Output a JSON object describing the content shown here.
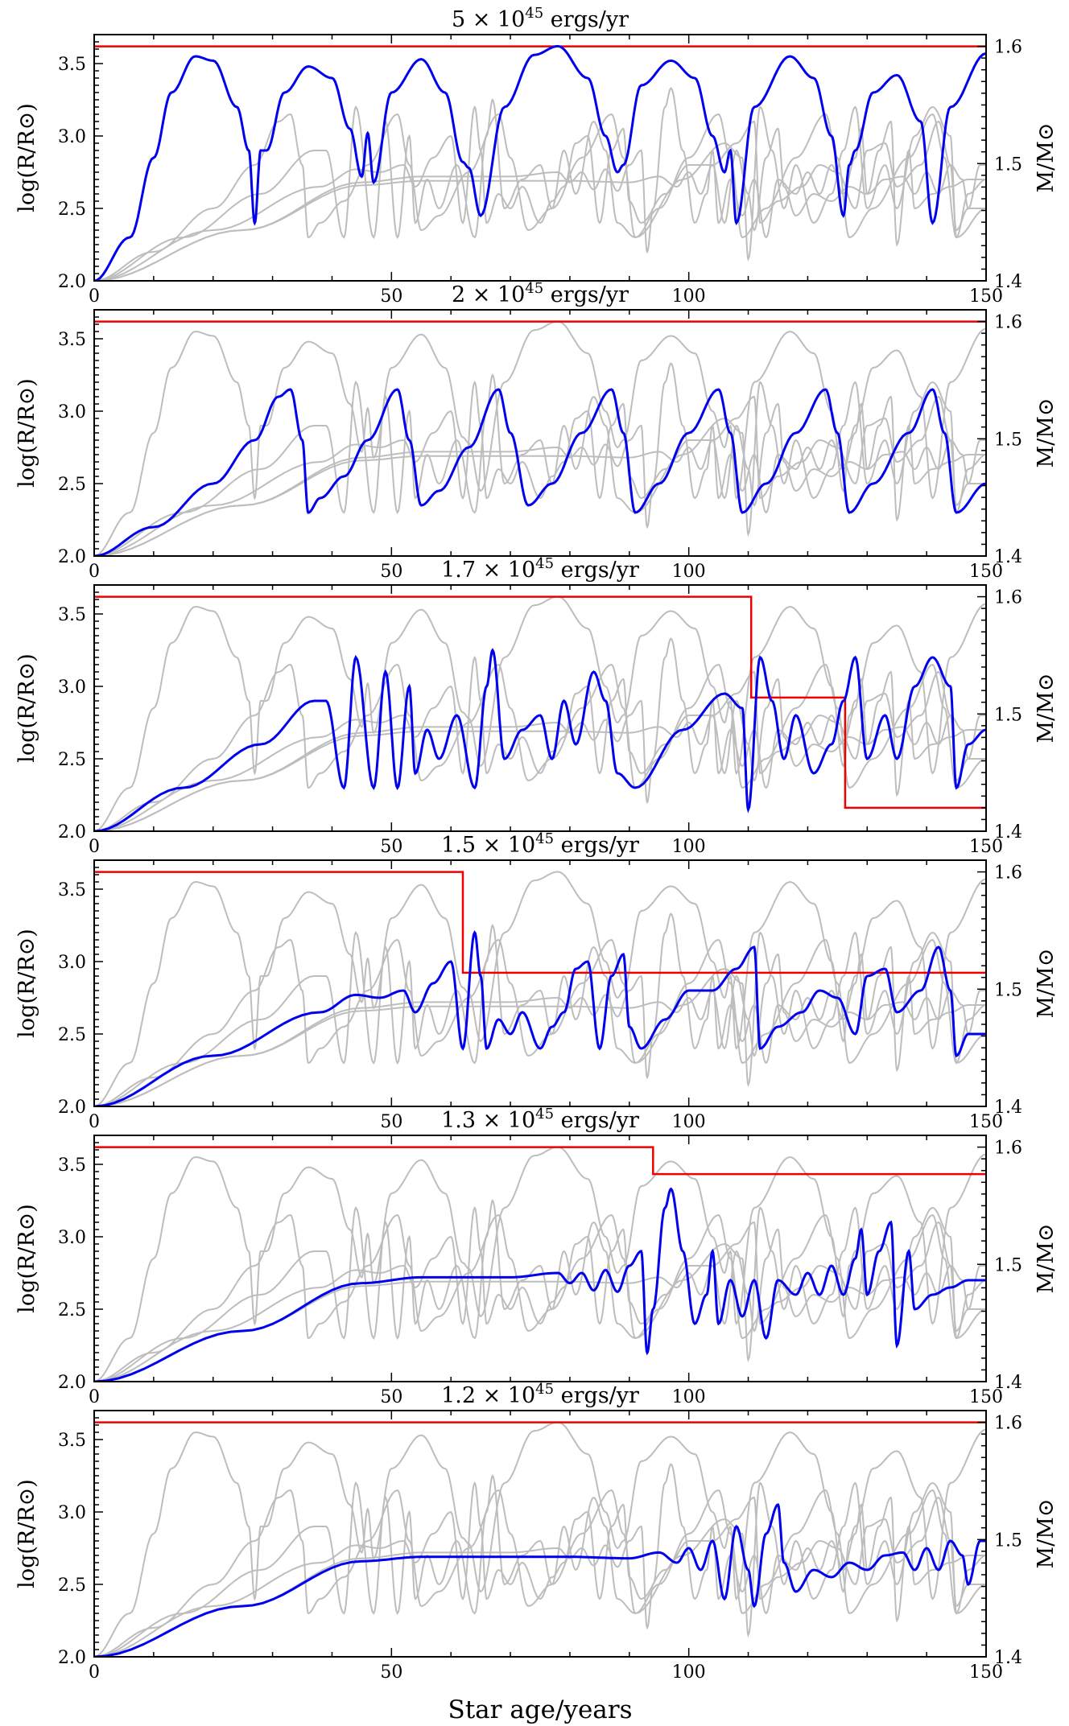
{
  "figure": {
    "xlabel": "Star age/years",
    "ylabel_left": "log(R/R⊙)",
    "ylabel_right": "M/M⊙"
  },
  "colors": {
    "highlight": "#0000ee",
    "mass": "#ee0000",
    "background_curves": "#bdbdbd"
  },
  "chart_data": [
    {
      "type": "line",
      "title": "5 × 10^45 ergs/yr",
      "title_parts": {
        "mantissa": "5",
        "times": "×",
        "base": "10",
        "exponent": "45",
        "unit": "ergs/yr"
      },
      "xlim": [
        0,
        150
      ],
      "ylim": [
        2.0,
        3.7
      ],
      "y2lim": [
        1.4,
        1.61
      ],
      "xticks": [
        0,
        50,
        100,
        150
      ],
      "yticks": [
        2.0,
        2.5,
        3.0,
        3.5
      ],
      "y2ticks": [
        1.4,
        1.5,
        1.6
      ],
      "radius_events": [
        [
          0,
          2.0
        ],
        [
          6,
          2.3
        ],
        [
          10,
          2.85
        ],
        [
          13,
          3.3
        ],
        [
          17,
          3.55
        ],
        [
          20,
          3.52
        ],
        [
          24,
          3.2
        ],
        [
          26,
          2.9
        ],
        [
          27,
          2.4
        ],
        [
          28,
          2.9
        ],
        [
          29,
          2.9
        ],
        [
          32,
          3.3
        ],
        [
          36,
          3.48
        ],
        [
          40,
          3.4
        ],
        [
          43,
          3.05
        ],
        [
          45,
          2.72
        ],
        [
          46,
          3.02
        ],
        [
          47,
          2.68
        ],
        [
          50,
          3.3
        ],
        [
          55,
          3.53
        ],
        [
          59,
          3.3
        ],
        [
          62,
          2.82
        ],
        [
          63,
          2.78
        ],
        [
          65,
          2.45
        ],
        [
          69,
          3.2
        ],
        [
          74,
          3.56
        ],
        [
          78,
          3.62
        ],
        [
          83,
          3.4
        ],
        [
          86,
          3.0
        ],
        [
          88,
          2.75
        ],
        [
          89,
          2.8
        ],
        [
          92,
          3.35
        ],
        [
          97,
          3.52
        ],
        [
          101,
          3.4
        ],
        [
          104,
          3.0
        ],
        [
          106,
          2.75
        ],
        [
          107,
          2.9
        ],
        [
          108,
          2.4
        ],
        [
          111,
          3.2
        ],
        [
          117,
          3.55
        ],
        [
          121,
          3.4
        ],
        [
          124,
          3.0
        ],
        [
          126,
          2.45
        ],
        [
          127,
          2.8
        ],
        [
          128,
          2.9
        ],
        [
          131,
          3.3
        ],
        [
          135,
          3.42
        ],
        [
          139,
          3.1
        ],
        [
          141,
          2.4
        ],
        [
          144,
          3.2
        ],
        [
          150,
          3.57
        ]
      ],
      "mass_steps": [
        [
          0,
          1.6
        ],
        [
          150,
          1.6
        ]
      ]
    },
    {
      "type": "line",
      "title": "2 × 10^45 ergs/yr",
      "title_parts": {
        "mantissa": "2",
        "times": "×",
        "base": "10",
        "exponent": "45",
        "unit": "ergs/yr"
      },
      "xlim": [
        0,
        150
      ],
      "ylim": [
        2.0,
        3.7
      ],
      "y2lim": [
        1.4,
        1.61
      ],
      "xticks": [
        0,
        50,
        100,
        150
      ],
      "yticks": [
        2.0,
        2.5,
        3.0,
        3.5
      ],
      "y2ticks": [
        1.4,
        1.5,
        1.6
      ],
      "radius_events": [
        [
          0,
          2.0
        ],
        [
          10,
          2.2
        ],
        [
          20,
          2.5
        ],
        [
          27,
          2.8
        ],
        [
          31,
          3.1
        ],
        [
          33,
          3.15
        ],
        [
          35,
          2.8
        ],
        [
          36,
          2.3
        ],
        [
          38,
          2.4
        ],
        [
          42,
          2.55
        ],
        [
          46,
          2.8
        ],
        [
          51,
          3.15
        ],
        [
          53,
          2.8
        ],
        [
          55,
          2.35
        ],
        [
          58,
          2.45
        ],
        [
          63,
          2.75
        ],
        [
          68,
          3.15
        ],
        [
          70,
          2.85
        ],
        [
          73,
          2.35
        ],
        [
          77,
          2.5
        ],
        [
          82,
          2.85
        ],
        [
          87,
          3.15
        ],
        [
          89,
          2.85
        ],
        [
          91,
          2.3
        ],
        [
          95,
          2.5
        ],
        [
          100,
          2.85
        ],
        [
          105,
          3.15
        ],
        [
          107,
          2.85
        ],
        [
          109,
          2.3
        ],
        [
          113,
          2.5
        ],
        [
          118,
          2.85
        ],
        [
          123,
          3.15
        ],
        [
          125,
          2.85
        ],
        [
          127,
          2.3
        ],
        [
          131,
          2.5
        ],
        [
          137,
          2.85
        ],
        [
          141,
          3.15
        ],
        [
          143,
          2.85
        ],
        [
          145,
          2.3
        ],
        [
          150,
          2.5
        ]
      ],
      "mass_steps": [
        [
          0,
          1.6
        ],
        [
          150,
          1.6
        ]
      ]
    },
    {
      "type": "line",
      "title": "1.7 × 10^45 ergs/yr",
      "title_parts": {
        "mantissa": "1.7",
        "times": "×",
        "base": "10",
        "exponent": "45",
        "unit": "ergs/yr"
      },
      "xlim": [
        0,
        150
      ],
      "ylim": [
        2.0,
        3.7
      ],
      "y2lim": [
        1.4,
        1.61
      ],
      "xticks": [
        0,
        50,
        100,
        150
      ],
      "yticks": [
        2.0,
        2.5,
        3.0,
        3.5
      ],
      "y2ticks": [
        1.4,
        1.5,
        1.6
      ],
      "radius_events": [
        [
          0,
          2.0
        ],
        [
          15,
          2.3
        ],
        [
          28,
          2.6
        ],
        [
          37,
          2.9
        ],
        [
          39,
          2.9
        ],
        [
          42,
          2.3
        ],
        [
          44,
          3.2
        ],
        [
          47,
          2.3
        ],
        [
          49,
          3.1
        ],
        [
          51,
          2.3
        ],
        [
          53,
          3.0
        ],
        [
          54,
          2.4
        ],
        [
          56,
          2.7
        ],
        [
          58,
          2.5
        ],
        [
          61,
          2.8
        ],
        [
          64,
          2.3
        ],
        [
          66,
          3.0
        ],
        [
          67,
          3.25
        ],
        [
          69,
          2.5
        ],
        [
          72,
          2.7
        ],
        [
          75,
          2.8
        ],
        [
          77,
          2.5
        ],
        [
          79,
          2.9
        ],
        [
          81,
          2.6
        ],
        [
          84,
          3.1
        ],
        [
          86,
          2.9
        ],
        [
          88,
          2.4
        ],
        [
          91,
          2.3
        ],
        [
          99,
          2.7
        ],
        [
          106,
          2.95
        ],
        [
          109,
          2.85
        ],
        [
          110,
          2.15
        ],
        [
          112,
          3.2
        ],
        [
          114,
          2.9
        ],
        [
          116,
          2.5
        ],
        [
          118,
          2.8
        ],
        [
          121,
          2.4
        ],
        [
          124,
          2.6
        ],
        [
          126,
          2.9
        ],
        [
          128,
          3.2
        ],
        [
          130,
          2.5
        ],
        [
          133,
          2.8
        ],
        [
          135,
          2.5
        ],
        [
          138,
          3.0
        ],
        [
          141,
          3.2
        ],
        [
          144,
          3.0
        ],
        [
          145,
          2.3
        ],
        [
          147,
          2.6
        ],
        [
          150,
          2.7
        ]
      ],
      "mass_steps": [
        [
          0,
          1.6
        ],
        [
          110.5,
          1.6
        ],
        [
          110.5,
          1.514
        ],
        [
          126.3,
          1.514
        ],
        [
          126.3,
          1.42
        ],
        [
          150,
          1.42
        ]
      ]
    },
    {
      "type": "line",
      "title": "1.5 × 10^45 ergs/yr",
      "title_parts": {
        "mantissa": "1.5",
        "times": "×",
        "base": "10",
        "exponent": "45",
        "unit": "ergs/yr"
      },
      "xlim": [
        0,
        150
      ],
      "ylim": [
        2.0,
        3.7
      ],
      "y2lim": [
        1.4,
        1.61
      ],
      "xticks": [
        0,
        50,
        100,
        150
      ],
      "yticks": [
        2.0,
        2.5,
        3.0,
        3.5
      ],
      "y2ticks": [
        1.4,
        1.5,
        1.6
      ],
      "radius_events": [
        [
          0,
          2.0
        ],
        [
          20,
          2.35
        ],
        [
          38,
          2.65
        ],
        [
          44,
          2.77
        ],
        [
          48,
          2.75
        ],
        [
          52,
          2.8
        ],
        [
          54,
          2.65
        ],
        [
          57,
          2.85
        ],
        [
          60,
          3.0
        ],
        [
          62,
          2.4
        ],
        [
          64,
          3.2
        ],
        [
          65,
          2.9
        ],
        [
          66,
          2.4
        ],
        [
          68,
          2.6
        ],
        [
          70,
          2.5
        ],
        [
          72,
          2.65
        ],
        [
          75,
          2.4
        ],
        [
          77,
          2.55
        ],
        [
          79,
          2.65
        ],
        [
          81,
          2.95
        ],
        [
          83,
          3.0
        ],
        [
          85,
          2.4
        ],
        [
          87,
          2.9
        ],
        [
          89,
          3.05
        ],
        [
          90,
          2.55
        ],
        [
          92,
          2.4
        ],
        [
          96,
          2.6
        ],
        [
          100,
          2.8
        ],
        [
          104,
          2.8
        ],
        [
          108,
          2.95
        ],
        [
          111,
          3.1
        ],
        [
          112,
          2.4
        ],
        [
          115,
          2.55
        ],
        [
          119,
          2.65
        ],
        [
          122,
          2.8
        ],
        [
          125,
          2.75
        ],
        [
          128,
          2.5
        ],
        [
          130,
          2.9
        ],
        [
          133,
          2.95
        ],
        [
          135,
          2.65
        ],
        [
          139,
          2.8
        ],
        [
          142,
          3.1
        ],
        [
          144,
          2.8
        ],
        [
          145,
          2.35
        ],
        [
          147,
          2.5
        ],
        [
          150,
          2.5
        ]
      ],
      "mass_steps": [
        [
          0,
          1.6
        ],
        [
          62,
          1.6
        ],
        [
          62,
          1.514
        ],
        [
          150,
          1.514
        ]
      ]
    },
    {
      "type": "line",
      "title": "1.3 × 10^45 ergs/yr",
      "title_parts": {
        "mantissa": "1.3",
        "times": "×",
        "base": "10",
        "exponent": "45",
        "unit": "ergs/yr"
      },
      "xlim": [
        0,
        150
      ],
      "ylim": [
        2.0,
        3.7
      ],
      "y2lim": [
        1.4,
        1.61
      ],
      "xticks": [
        0,
        50,
        100,
        150
      ],
      "yticks": [
        2.0,
        2.5,
        3.0,
        3.5
      ],
      "y2ticks": [
        1.4,
        1.5,
        1.6
      ],
      "radius_events": [
        [
          0,
          2.0
        ],
        [
          25,
          2.35
        ],
        [
          45,
          2.68
        ],
        [
          55,
          2.72
        ],
        [
          70,
          2.72
        ],
        [
          78,
          2.75
        ],
        [
          80,
          2.68
        ],
        [
          82,
          2.75
        ],
        [
          84,
          2.63
        ],
        [
          86,
          2.77
        ],
        [
          88,
          2.62
        ],
        [
          90,
          2.8
        ],
        [
          92,
          2.9
        ],
        [
          93,
          2.2
        ],
        [
          94,
          2.5
        ],
        [
          96,
          3.2
        ],
        [
          97,
          3.33
        ],
        [
          99,
          2.9
        ],
        [
          101,
          2.4
        ],
        [
          103,
          2.6
        ],
        [
          104,
          2.9
        ],
        [
          105,
          2.4
        ],
        [
          107,
          2.7
        ],
        [
          109,
          2.45
        ],
        [
          111,
          2.7
        ],
        [
          113,
          2.3
        ],
        [
          115,
          2.7
        ],
        [
          118,
          2.6
        ],
        [
          120,
          2.75
        ],
        [
          122,
          2.6
        ],
        [
          124,
          2.8
        ],
        [
          126,
          2.6
        ],
        [
          128,
          2.85
        ],
        [
          129,
          3.05
        ],
        [
          130,
          2.6
        ],
        [
          132,
          2.9
        ],
        [
          134,
          3.1
        ],
        [
          135,
          2.25
        ],
        [
          137,
          2.9
        ],
        [
          138,
          2.5
        ],
        [
          141,
          2.6
        ],
        [
          144,
          2.65
        ],
        [
          147,
          2.7
        ],
        [
          150,
          2.7
        ]
      ],
      "mass_steps": [
        [
          0,
          1.6
        ],
        [
          94,
          1.6
        ],
        [
          94,
          1.577
        ],
        [
          150,
          1.577
        ]
      ]
    },
    {
      "type": "line",
      "title": "1.2 × 10^45 ergs/yr",
      "title_parts": {
        "mantissa": "1.2",
        "times": "×",
        "base": "10",
        "exponent": "45",
        "unit": "ergs/yr"
      },
      "xlim": [
        0,
        150
      ],
      "ylim": [
        2.0,
        3.7
      ],
      "y2lim": [
        1.4,
        1.61
      ],
      "xticks": [
        0,
        50,
        100,
        150
      ],
      "yticks": [
        2.0,
        2.5,
        3.0,
        3.5
      ],
      "y2ticks": [
        1.4,
        1.5,
        1.6
      ],
      "radius_events": [
        [
          0,
          2.0
        ],
        [
          25,
          2.35
        ],
        [
          45,
          2.66
        ],
        [
          55,
          2.69
        ],
        [
          80,
          2.69
        ],
        [
          90,
          2.68
        ],
        [
          95,
          2.72
        ],
        [
          98,
          2.65
        ],
        [
          100,
          2.75
        ],
        [
          102,
          2.6
        ],
        [
          104,
          2.8
        ],
        [
          106,
          2.4
        ],
        [
          108,
          2.9
        ],
        [
          110,
          2.6
        ],
        [
          111,
          2.35
        ],
        [
          113,
          2.85
        ],
        [
          115,
          3.05
        ],
        [
          116,
          2.65
        ],
        [
          118,
          2.45
        ],
        [
          121,
          2.6
        ],
        [
          124,
          2.55
        ],
        [
          127,
          2.65
        ],
        [
          130,
          2.6
        ],
        [
          133,
          2.7
        ],
        [
          136,
          2.72
        ],
        [
          138,
          2.6
        ],
        [
          140,
          2.75
        ],
        [
          142,
          2.6
        ],
        [
          144,
          2.8
        ],
        [
          146,
          2.7
        ],
        [
          147,
          2.5
        ],
        [
          149,
          2.8
        ],
        [
          150,
          2.8
        ]
      ],
      "mass_steps": [
        [
          0,
          1.6
        ],
        [
          150,
          1.6
        ]
      ]
    }
  ]
}
